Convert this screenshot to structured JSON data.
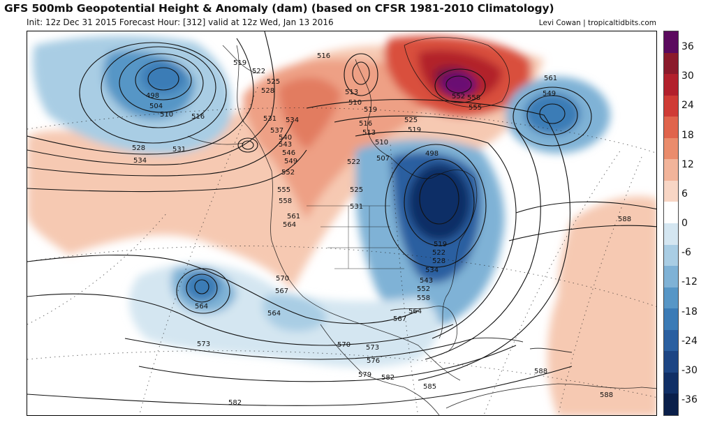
{
  "title": "GFS 500mb Geopotential Height & Anomaly (dam) (based on CFSR 1981-2010 Climatology)",
  "subtitle": "Init: 12z Dec 31 2015   Forecast Hour: [312]   valid at 12z Wed, Jan 13 2016",
  "credit": "Levi Cowan | tropicaltidbits.com",
  "colorbar": {
    "labels": [
      "36",
      "30",
      "24",
      "18",
      "12",
      "6",
      "0",
      "-6",
      "-12",
      "-18",
      "-24",
      "-30",
      "-36"
    ],
    "colors": [
      "#5b0a5e",
      "#8b1a2b",
      "#b2202c",
      "#cf3b35",
      "#e0644c",
      "#ea8c6c",
      "#f2b49a",
      "#f8d6c5",
      "#ffffff",
      "#d4e6f1",
      "#a9cde4",
      "#7fb2d6",
      "#5796c6",
      "#3b7bb6",
      "#2a5fa0",
      "#1c4584",
      "#102f66",
      "#0a1f4a"
    ],
    "accent_negative": "#2a5fa0",
    "accent_positive": "#c0392b"
  },
  "map": {
    "contour_labels": [
      "498",
      "504",
      "510",
      "516",
      "519",
      "522",
      "525",
      "528",
      "531",
      "534",
      "537",
      "540",
      "543",
      "546",
      "549",
      "552",
      "555",
      "558",
      "561",
      "564",
      "567",
      "570",
      "573",
      "576",
      "579",
      "582",
      "585",
      "588",
      "507",
      "513"
    ],
    "featured_labels": {
      "low_pacific": "498",
      "low_east": "498",
      "low_atlantic": "549",
      "high_greenland": "552",
      "ridge_atlantic": "588",
      "low_subtropical": "564"
    }
  }
}
